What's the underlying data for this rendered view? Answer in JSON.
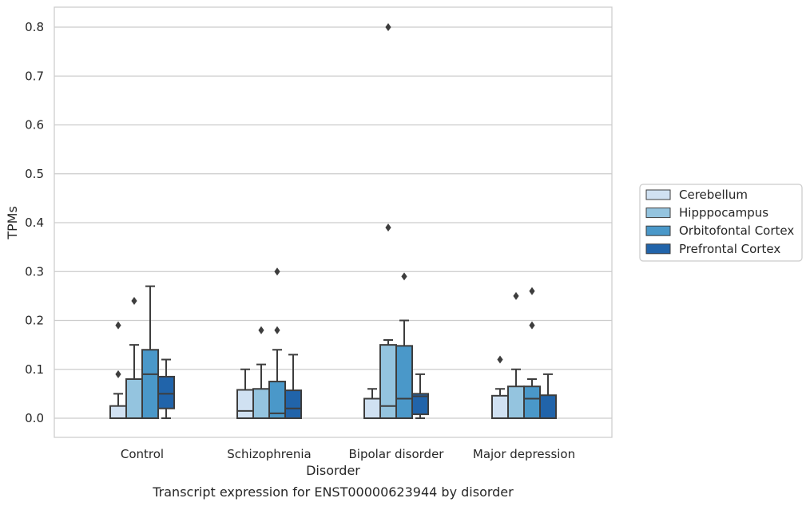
{
  "chart_data": {
    "type": "box",
    "caption": "Transcript expression for ENST00000623944 by disorder",
    "xlabel": "Disorder",
    "ylabel": "TPMs",
    "ylim": [
      -0.04,
      0.84
    ],
    "yticks": [
      0.0,
      0.1,
      0.2,
      0.3,
      0.4,
      0.5,
      0.6,
      0.7,
      0.8
    ],
    "ytick_labels": [
      "0.0",
      "0.1",
      "0.2",
      "0.3",
      "0.4",
      "0.5",
      "0.6",
      "0.7",
      "0.8"
    ],
    "grid": "horizontal",
    "legend_position": "right",
    "categories": [
      "Control",
      "Schizophrenia",
      "Bipolar disorder",
      "Major depression"
    ],
    "series": [
      {
        "name": "Cerebellum",
        "color": "#d0e1f2",
        "boxes": [
          {
            "whislo": 0.0,
            "q1": 0.0,
            "med": 0.0,
            "q3": 0.025,
            "whishi": 0.05,
            "fliers": [
              0.09,
              0.19
            ]
          },
          {
            "whislo": 0.0,
            "q1": 0.0,
            "med": 0.015,
            "q3": 0.058,
            "whishi": 0.1,
            "fliers": []
          },
          {
            "whislo": 0.0,
            "q1": 0.0,
            "med": 0.0,
            "q3": 0.04,
            "whishi": 0.06,
            "fliers": []
          },
          {
            "whislo": 0.0,
            "q1": 0.0,
            "med": 0.0,
            "q3": 0.046,
            "whishi": 0.06,
            "fliers": [
              0.12
            ]
          }
        ]
      },
      {
        "name": "Hipppocampus",
        "color": "#94c4df",
        "boxes": [
          {
            "whislo": 0.0,
            "q1": 0.0,
            "med": 0.0,
            "q3": 0.08,
            "whishi": 0.15,
            "fliers": [
              0.24
            ]
          },
          {
            "whislo": 0.0,
            "q1": 0.0,
            "med": 0.0,
            "q3": 0.06,
            "whishi": 0.11,
            "fliers": [
              0.18
            ]
          },
          {
            "whislo": 0.0,
            "q1": 0.0,
            "med": 0.025,
            "q3": 0.15,
            "whishi": 0.16,
            "fliers": [
              0.39,
              0.8
            ]
          },
          {
            "whislo": 0.0,
            "q1": 0.0,
            "med": 0.0,
            "q3": 0.065,
            "whishi": 0.1,
            "fliers": [
              0.25
            ]
          }
        ]
      },
      {
        "name": "Orbitofontal Cortex",
        "color": "#4a98c9",
        "boxes": [
          {
            "whislo": 0.0,
            "q1": 0.0,
            "med": 0.09,
            "q3": 0.14,
            "whishi": 0.27,
            "fliers": []
          },
          {
            "whislo": 0.0,
            "q1": 0.0,
            "med": 0.01,
            "q3": 0.075,
            "whishi": 0.14,
            "fliers": [
              0.3,
              0.18
            ]
          },
          {
            "whislo": 0.0,
            "q1": 0.0,
            "med": 0.04,
            "q3": 0.148,
            "whishi": 0.2,
            "fliers": [
              0.29
            ]
          },
          {
            "whislo": 0.0,
            "q1": 0.0,
            "med": 0.04,
            "q3": 0.065,
            "whishi": 0.08,
            "fliers": [
              0.26,
              0.19
            ]
          }
        ]
      },
      {
        "name": "Prefrontal Cortex",
        "color": "#2164aa",
        "boxes": [
          {
            "whislo": 0.0,
            "q1": 0.02,
            "med": 0.05,
            "q3": 0.085,
            "whishi": 0.12,
            "fliers": []
          },
          {
            "whislo": 0.0,
            "q1": 0.0,
            "med": 0.02,
            "q3": 0.057,
            "whishi": 0.13,
            "fliers": []
          },
          {
            "whislo": 0.0,
            "q1": 0.008,
            "med": 0.045,
            "q3": 0.05,
            "whishi": 0.09,
            "fliers": []
          },
          {
            "whislo": 0.0,
            "q1": 0.0,
            "med": 0.0,
            "q3": 0.047,
            "whishi": 0.09,
            "fliers": []
          }
        ]
      }
    ]
  }
}
